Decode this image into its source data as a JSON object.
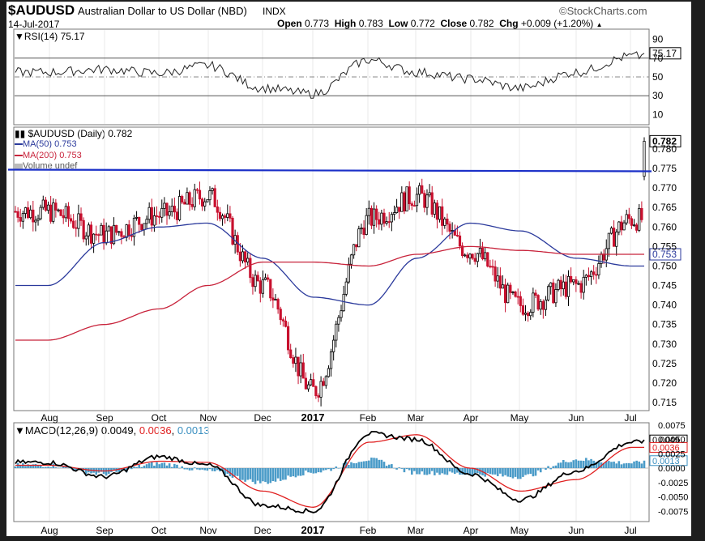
{
  "header": {
    "symbol": "$AUDUSD",
    "name": "Australian Dollar to US Dollar (NBD)",
    "exchange": "INDX",
    "date": "14-Jul-2017",
    "watermark": "©StockCharts.com",
    "open_label": "Open",
    "open": "0.773",
    "high_label": "High",
    "high": "0.783",
    "low_label": "Low",
    "low": "0.772",
    "close_label": "Close",
    "close": "0.782",
    "chg_label": "Chg",
    "chg": "+0.009 (+1.20%)"
  },
  "rsi": {
    "label": "RSI(14) 75.17",
    "value": "75.17",
    "ticks": [
      "90",
      "70",
      "50",
      "30",
      "10"
    ]
  },
  "price": {
    "legend_main": "$AUDUSD (Daily) 0.782",
    "legend_ma50": "MA(50) 0.753",
    "legend_ma200": "MA(200) 0.753",
    "legend_volume": "Volume undef",
    "last_price": "0.782",
    "ma_value": "0.753",
    "ticks": [
      "0.780",
      "0.775",
      "0.770",
      "0.765",
      "0.760",
      "0.755",
      "0.750",
      "0.745",
      "0.740",
      "0.735",
      "0.730",
      "0.725",
      "0.720",
      "0.715"
    ]
  },
  "macd": {
    "label_prefix": "MACD(12,26,9)",
    "macd_value": "0.0049",
    "signal_value": "0.0036",
    "hist_value": "0.0013",
    "ticks": [
      "0.0075",
      "0.0050",
      "0.0025",
      "0.0000",
      "-0.0025",
      "-0.0050",
      "-0.0075"
    ]
  },
  "x_labels": [
    "Aug",
    "Sep",
    "Oct",
    "Nov",
    "Dec",
    "2017",
    "Feb",
    "Mar",
    "Apr",
    "May",
    "Jun",
    "Jul"
  ],
  "colors": {
    "ma50": "#2b3a9c",
    "ma200": "#c8233b",
    "trendline": "#1a2fc8",
    "down_candle": "#c8102e",
    "up_candle": "#000000",
    "hist": "#4a9bc8",
    "macd_line": "#000000",
    "signal_line": "#e02020"
  },
  "chart_data": [
    {
      "type": "line",
      "title": "RSI(14)",
      "ylim": [
        0,
        100
      ],
      "reference_lines": [
        70,
        50,
        30
      ],
      "x": [
        "Aug",
        "Sep",
        "Oct",
        "Nov",
        "Dec",
        "2017",
        "Feb",
        "Mar",
        "Apr",
        "May",
        "Jun",
        "Jul"
      ],
      "series": [
        {
          "name": "RSI(14)",
          "values": [
            55,
            58,
            54,
            62,
            38,
            32,
            68,
            55,
            48,
            38,
            55,
            72
          ]
        }
      ],
      "last": 75.17
    },
    {
      "type": "line",
      "title": "$AUDUSD (Daily)",
      "ylim": [
        0.713,
        0.784
      ],
      "x": [
        "Aug",
        "Sep",
        "Oct",
        "Nov",
        "Dec",
        "2017",
        "Feb",
        "Mar",
        "Apr",
        "May",
        "Jun",
        "Jul"
      ],
      "series": [
        {
          "name": "$AUDUSD",
          "values": [
            0.764,
            0.758,
            0.763,
            0.768,
            0.745,
            0.718,
            0.762,
            0.768,
            0.754,
            0.74,
            0.745,
            0.762
          ]
        },
        {
          "name": "MA(50)",
          "values": [
            0.745,
            0.756,
            0.76,
            0.761,
            0.752,
            0.742,
            0.74,
            0.752,
            0.761,
            0.759,
            0.752,
            0.75
          ]
        },
        {
          "name": "MA(200)",
          "values": [
            0.731,
            0.735,
            0.739,
            0.745,
            0.751,
            0.751,
            0.75,
            0.753,
            0.755,
            0.754,
            0.753,
            0.753
          ]
        }
      ],
      "ohlc_last": {
        "open": 0.773,
        "high": 0.783,
        "low": 0.772,
        "close": 0.782
      },
      "horizontal_line": 0.7745
    },
    {
      "type": "line",
      "title": "MACD(12,26,9)",
      "ylim": [
        -0.0085,
        0.0085
      ],
      "x": [
        "Aug",
        "Sep",
        "Oct",
        "Nov",
        "Dec",
        "2017",
        "Feb",
        "Mar",
        "Apr",
        "May",
        "Jun",
        "Jul"
      ],
      "series": [
        {
          "name": "MACD",
          "values": [
            0.001,
            -0.0015,
            0.002,
            0.0005,
            -0.0065,
            -0.0075,
            0.006,
            0.005,
            -0.001,
            -0.0055,
            -0.0005,
            0.0045
          ]
        },
        {
          "name": "Signal",
          "values": [
            0.0005,
            -0.0005,
            0.0012,
            0.001,
            -0.004,
            -0.0068,
            0.0045,
            0.0058,
            0.0,
            -0.004,
            -0.002,
            0.0036
          ]
        },
        {
          "name": "Histogram",
          "values": [
            0.0005,
            -0.001,
            0.0008,
            -0.0005,
            -0.0025,
            -0.0007,
            0.0015,
            -0.0008,
            -0.001,
            -0.0015,
            0.0015,
            0.0009
          ]
        }
      ],
      "last": {
        "macd": 0.0049,
        "signal": 0.0036,
        "histogram": 0.0013
      }
    }
  ]
}
